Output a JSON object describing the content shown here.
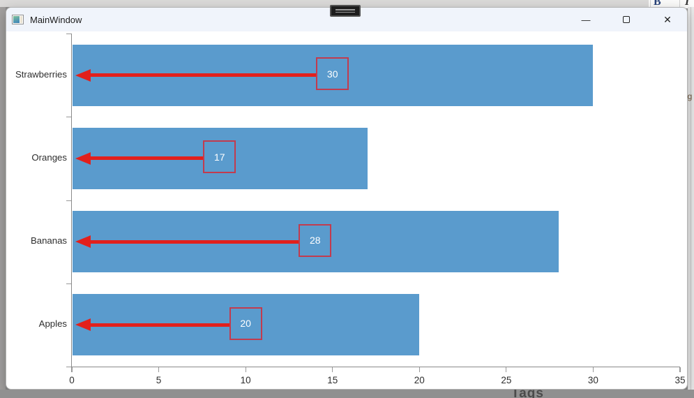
{
  "desktop": {
    "background_toolbar": {
      "bold_label": "B",
      "italic_label": "I"
    },
    "edge_text_right": "ng",
    "edge_text_bottom": "Tags"
  },
  "window": {
    "title": "MainWindow",
    "minimize_glyph": "—",
    "close_glyph": "✕"
  },
  "chart_data": {
    "type": "bar",
    "orientation": "horizontal",
    "title": "",
    "xlabel": "",
    "ylabel": "",
    "categories": [
      "Strawberries",
      "Oranges",
      "Bananas",
      "Apples"
    ],
    "values": [
      30,
      17,
      28,
      20
    ],
    "xlim": [
      0,
      35
    ],
    "x_ticks": [
      0,
      5,
      10,
      15,
      20,
      25,
      30,
      35
    ],
    "grid": false,
    "legend": false,
    "annotations": [
      {
        "category": "Strawberries",
        "label": "30",
        "text_x": 15,
        "arrow_to_x": 0
      },
      {
        "category": "Oranges",
        "label": "17",
        "text_x": 8.5,
        "arrow_to_x": 0
      },
      {
        "category": "Bananas",
        "label": "28",
        "text_x": 14,
        "arrow_to_x": 0
      },
      {
        "category": "Apples",
        "label": "20",
        "text_x": 10,
        "arrow_to_x": 0
      }
    ],
    "colors": {
      "bar": "#5A9BCD",
      "arrow": "#E2201C",
      "annotation_border": "#C23B4E",
      "annotation_text": "#FFFFFF",
      "axis": "#8A8A8A",
      "tick_label": "#2E2E2E"
    }
  }
}
